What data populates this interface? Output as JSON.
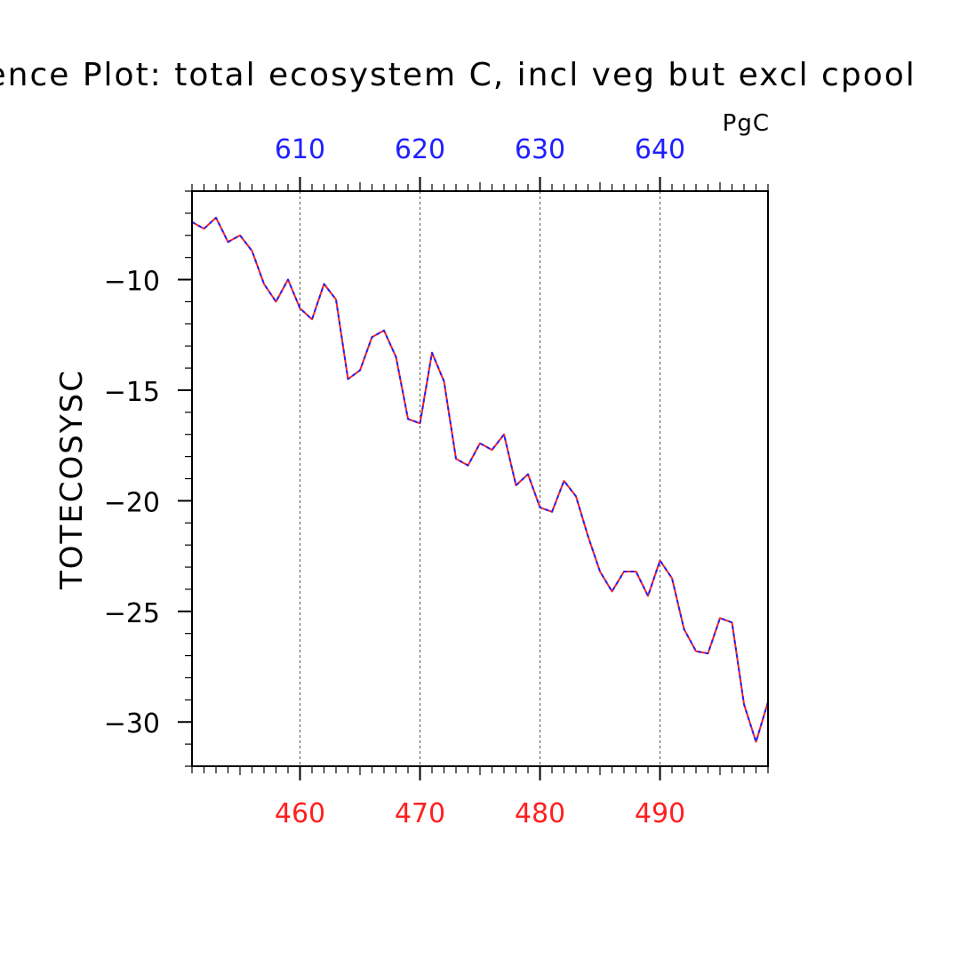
{
  "chart_data": {
    "type": "line",
    "title": "Difference Plot: total ecosystem C, incl veg but excl cpool",
    "units": "PgC",
    "ylabel": "TOTECOSYSC",
    "ylim": [
      -32,
      -6
    ],
    "y_ticks": [
      -30,
      -25,
      -20,
      -15,
      -10
    ],
    "y_tick_labels": [
      "−30",
      "−25",
      "−20",
      "−15",
      "−10"
    ],
    "x_bottom": {
      "range": [
        451,
        499
      ],
      "ticks": [
        460,
        470,
        480,
        490
      ],
      "tick_labels": [
        "460",
        "470",
        "480",
        "490"
      ],
      "color": "#ff2020"
    },
    "x_top": {
      "range": [
        601,
        649
      ],
      "ticks": [
        610,
        620,
        630,
        640
      ],
      "tick_labels": [
        "610",
        "620",
        "630",
        "640"
      ],
      "color": "#2020ff"
    },
    "grid": "vertical-dashed-at-major-ticks",
    "series": [
      {
        "color": "#ff2020",
        "style": "solid",
        "x": [
          451,
          452,
          453,
          454,
          455,
          456,
          457,
          458,
          459,
          460,
          461,
          462,
          463,
          464,
          465,
          466,
          467,
          468,
          469,
          470,
          471,
          472,
          473,
          474,
          475,
          476,
          477,
          478,
          479,
          480,
          481,
          482,
          483,
          484,
          485,
          486,
          487,
          488,
          489,
          490,
          491,
          492,
          493,
          494,
          495,
          496,
          497,
          498,
          499
        ],
        "y": [
          -7.4,
          -7.7,
          -7.2,
          -8.3,
          -8.0,
          -8.7,
          -10.2,
          -11.0,
          -10.0,
          -11.3,
          -11.8,
          -10.2,
          -10.9,
          -14.5,
          -14.1,
          -12.6,
          -12.3,
          -13.5,
          -16.3,
          -16.5,
          -13.3,
          -14.6,
          -18.1,
          -18.4,
          -17.4,
          -17.7,
          -17.0,
          -19.3,
          -18.8,
          -20.3,
          -20.5,
          -19.1,
          -19.8,
          -21.6,
          -23.2,
          -24.1,
          -23.2,
          -23.2,
          -24.3,
          -22.7,
          -23.5,
          -25.8,
          -26.8,
          -26.9,
          -25.3,
          -25.5,
          -29.2,
          -30.9,
          -29.1
        ]
      },
      {
        "color": "#2020ff",
        "style": "dashed",
        "x": [
          451,
          452,
          453,
          454,
          455,
          456,
          457,
          458,
          459,
          460,
          461,
          462,
          463,
          464,
          465,
          466,
          467,
          468,
          469,
          470,
          471,
          472,
          473,
          474,
          475,
          476,
          477,
          478,
          479,
          480,
          481,
          482,
          483,
          484,
          485,
          486,
          487,
          488,
          489,
          490,
          491,
          492,
          493,
          494,
          495,
          496,
          497,
          498,
          499
        ],
        "y": [
          -7.4,
          -7.7,
          -7.2,
          -8.3,
          -8.0,
          -8.7,
          -10.2,
          -11.0,
          -10.0,
          -11.3,
          -11.8,
          -10.2,
          -10.9,
          -14.5,
          -14.1,
          -12.6,
          -12.3,
          -13.5,
          -16.3,
          -16.5,
          -13.3,
          -14.6,
          -18.1,
          -18.4,
          -17.4,
          -17.7,
          -17.0,
          -19.3,
          -18.8,
          -20.3,
          -20.5,
          -19.1,
          -19.8,
          -21.6,
          -23.2,
          -24.1,
          -23.2,
          -23.2,
          -24.3,
          -22.7,
          -23.5,
          -25.8,
          -26.8,
          -26.9,
          -25.3,
          -25.5,
          -29.2,
          -30.9,
          -29.1
        ]
      }
    ]
  }
}
